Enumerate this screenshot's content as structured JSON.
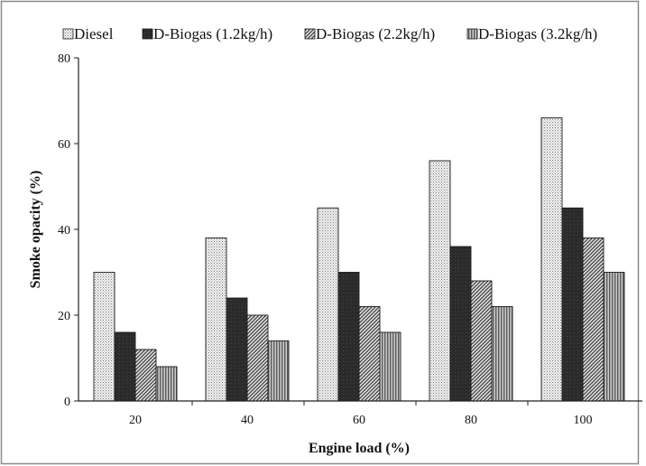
{
  "chart_data": {
    "type": "bar",
    "title": "",
    "xlabel": "Engine load (%)",
    "ylabel": "Smoke opacity (%)",
    "categories": [
      "20",
      "40",
      "60",
      "80",
      "100"
    ],
    "ylim": [
      0,
      80
    ],
    "yticks": [
      "0",
      "20",
      "40",
      "60",
      "80"
    ],
    "grid": false,
    "legend_position": "top",
    "series": [
      {
        "name": "Diesel",
        "values": [
          30,
          38,
          45,
          56,
          66
        ],
        "pattern": "dots"
      },
      {
        "name": "D-Biogas (1.2kg/h)",
        "values": [
          16,
          24,
          30,
          36,
          45
        ],
        "pattern": "solid-dark"
      },
      {
        "name": "D-Biogas (2.2kg/h)",
        "values": [
          12,
          20,
          22,
          28,
          38
        ],
        "pattern": "diagonal-hatch"
      },
      {
        "name": "D-Biogas (3.2kg/h)",
        "values": [
          8,
          14,
          16,
          22,
          30
        ],
        "pattern": "vertical-lines"
      }
    ]
  }
}
